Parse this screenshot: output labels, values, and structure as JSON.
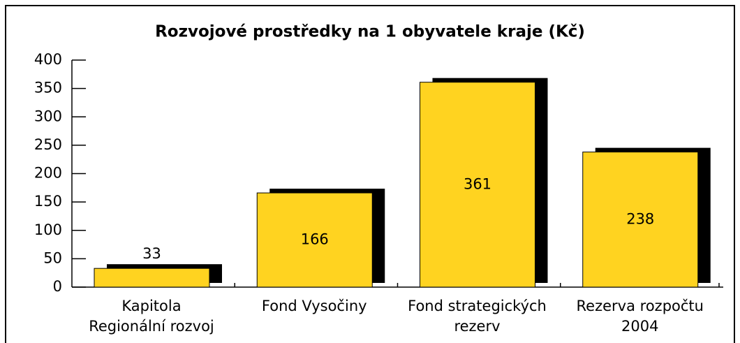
{
  "chart_data": {
    "type": "bar",
    "title": "Rozvojové prostředky na 1 obyvatele kraje (Kč)",
    "categories": [
      "Kapitola\nRegionální rozvoj",
      "Fond Vysočiny",
      "Fond strategických\nrezerv",
      "Rezerva rozpočtu\n2004"
    ],
    "values": [
      33,
      166,
      361,
      238
    ],
    "color": "#ffd320",
    "shadow_color": "#000000",
    "ylim": [
      0,
      400
    ],
    "yticks": [
      0,
      50,
      100,
      150,
      200,
      250,
      300,
      350,
      400
    ]
  }
}
